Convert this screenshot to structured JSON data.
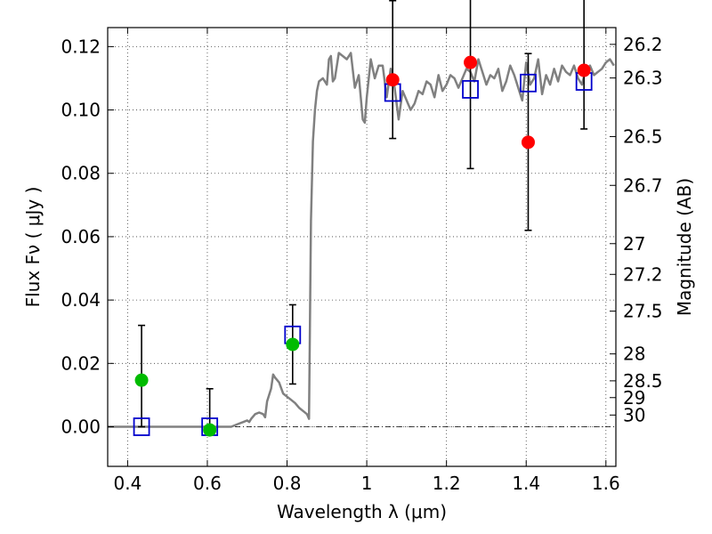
{
  "chart_data": {
    "type": "scatter",
    "xlabel": "Wavelength  λ (μm)",
    "ylabel": "Flux  Fν  ( μJy )",
    "ylabel_right": "Magnitude (AB)",
    "xlim": [
      0.35,
      1.625
    ],
    "ylim": [
      -0.0125,
      0.126
    ],
    "grid": true,
    "x_ticks": [
      0.4,
      0.6,
      0.8,
      1.0,
      1.2,
      1.4,
      1.6
    ],
    "x_tick_labels": [
      "0.4",
      "0.6",
      "0.8",
      "1",
      "1.2",
      "1.4",
      "1.6"
    ],
    "y_ticks": [
      0.0,
      0.02,
      0.04,
      0.06,
      0.08,
      0.1,
      0.12
    ],
    "y_tick_labels": [
      "0.00",
      "0.02",
      "0.04",
      "0.06",
      "0.08",
      "0.10",
      "0.12"
    ],
    "right_ticks": [
      {
        "label": "26.2",
        "flux": 0.1207
      },
      {
        "label": "26.3",
        "flux": 0.1101
      },
      {
        "label": "26.5",
        "flux": 0.0916
      },
      {
        "label": "26.7",
        "flux": 0.0762
      },
      {
        "label": "27",
        "flux": 0.0578
      },
      {
        "label": "27.2",
        "flux": 0.0481
      },
      {
        "label": "27.5",
        "flux": 0.0365
      },
      {
        "label": "28",
        "flux": 0.023
      },
      {
        "label": "28.5",
        "flux": 0.0145
      },
      {
        "label": "29",
        "flux": 0.0092
      },
      {
        "label": "30",
        "flux": 0.0037
      }
    ],
    "colors": {
      "model": "#808080",
      "observed_upper_limits": "#00bb00",
      "observed_detections": "#ff0000",
      "model_photometry": "#0000cc",
      "error_bars": "#000000"
    },
    "model_spectrum": {
      "x": [
        0.35,
        0.38,
        0.42,
        0.46,
        0.5,
        0.54,
        0.58,
        0.62,
        0.66,
        0.68,
        0.69,
        0.7,
        0.705,
        0.71,
        0.72,
        0.73,
        0.74,
        0.745,
        0.75,
        0.76,
        0.765,
        0.77,
        0.78,
        0.79,
        0.8,
        0.81,
        0.82,
        0.83,
        0.84,
        0.85,
        0.855,
        0.86,
        0.865,
        0.87,
        0.875,
        0.88,
        0.89,
        0.9,
        0.905,
        0.91,
        0.915,
        0.92,
        0.93,
        0.94,
        0.95,
        0.96,
        0.97,
        0.98,
        0.99,
        0.995,
        1.0,
        1.01,
        1.02,
        1.03,
        1.04,
        1.05,
        1.06,
        1.07,
        1.08,
        1.09,
        1.1,
        1.11,
        1.12,
        1.13,
        1.14,
        1.15,
        1.16,
        1.17,
        1.18,
        1.19,
        1.2,
        1.21,
        1.22,
        1.23,
        1.24,
        1.25,
        1.26,
        1.27,
        1.28,
        1.29,
        1.3,
        1.31,
        1.32,
        1.33,
        1.34,
        1.35,
        1.36,
        1.37,
        1.38,
        1.39,
        1.4,
        1.41,
        1.42,
        1.43,
        1.44,
        1.45,
        1.46,
        1.47,
        1.48,
        1.49,
        1.5,
        1.51,
        1.52,
        1.53,
        1.54,
        1.55,
        1.56,
        1.57,
        1.58,
        1.59,
        1.6,
        1.61,
        1.62
      ],
      "y": [
        0.0,
        0.0,
        0.0,
        0.0,
        0.0,
        0.0,
        0.0,
        0.0,
        0.0,
        0.001,
        0.0015,
        0.002,
        0.0015,
        0.0025,
        0.004,
        0.0045,
        0.004,
        0.003,
        0.008,
        0.012,
        0.0165,
        0.0155,
        0.014,
        0.0105,
        0.0095,
        0.0085,
        0.0075,
        0.006,
        0.005,
        0.004,
        0.0025,
        0.065,
        0.09,
        0.1,
        0.106,
        0.109,
        0.11,
        0.108,
        0.116,
        0.117,
        0.109,
        0.11,
        0.118,
        0.117,
        0.116,
        0.118,
        0.107,
        0.111,
        0.097,
        0.096,
        0.104,
        0.116,
        0.11,
        0.114,
        0.114,
        0.104,
        0.113,
        0.107,
        0.097,
        0.106,
        0.103,
        0.1,
        0.102,
        0.106,
        0.105,
        0.109,
        0.108,
        0.104,
        0.111,
        0.106,
        0.108,
        0.111,
        0.11,
        0.107,
        0.11,
        0.113,
        0.112,
        0.109,
        0.116,
        0.112,
        0.108,
        0.111,
        0.11,
        0.113,
        0.106,
        0.109,
        0.114,
        0.111,
        0.107,
        0.103,
        0.115,
        0.108,
        0.11,
        0.116,
        0.105,
        0.111,
        0.108,
        0.113,
        0.109,
        0.114,
        0.112,
        0.111,
        0.114,
        0.11,
        0.108,
        0.113,
        0.114,
        0.111,
        0.112,
        0.113,
        0.115,
        0.116,
        0.114
      ]
    },
    "observed_upper_limits": [
      {
        "x": 0.435,
        "y": 0.0147,
        "yerr_low": 0.0147,
        "yerr_high": 0.0173
      },
      {
        "x": 0.606,
        "y": -0.001,
        "yerr_low": 0.0,
        "yerr_high": 0.013
      },
      {
        "x": 0.814,
        "y": 0.026,
        "yerr_low": 0.0125,
        "yerr_high": 0.0125
      }
    ],
    "observed_detections": [
      {
        "x": 1.065,
        "y": 0.1095,
        "yerr_low": 0.0185,
        "yerr_high": 0.025
      },
      {
        "x": 1.26,
        "y": 0.115,
        "yerr_low": 0.0335,
        "yerr_high": 0.025
      },
      {
        "x": 1.405,
        "y": 0.0898,
        "yerr_low": 0.0278,
        "yerr_high": 0.028
      },
      {
        "x": 1.545,
        "y": 0.1125,
        "yerr_low": 0.0185,
        "yerr_high": 0.025
      }
    ],
    "model_photometry": [
      {
        "x": 0.435,
        "y": 0.0
      },
      {
        "x": 0.606,
        "y": 0.0
      },
      {
        "x": 0.814,
        "y": 0.029
      },
      {
        "x": 1.065,
        "y": 0.1055
      },
      {
        "x": 1.26,
        "y": 0.1065
      },
      {
        "x": 1.405,
        "y": 0.1085
      },
      {
        "x": 1.545,
        "y": 0.109
      }
    ],
    "zero_line": 0.0
  }
}
